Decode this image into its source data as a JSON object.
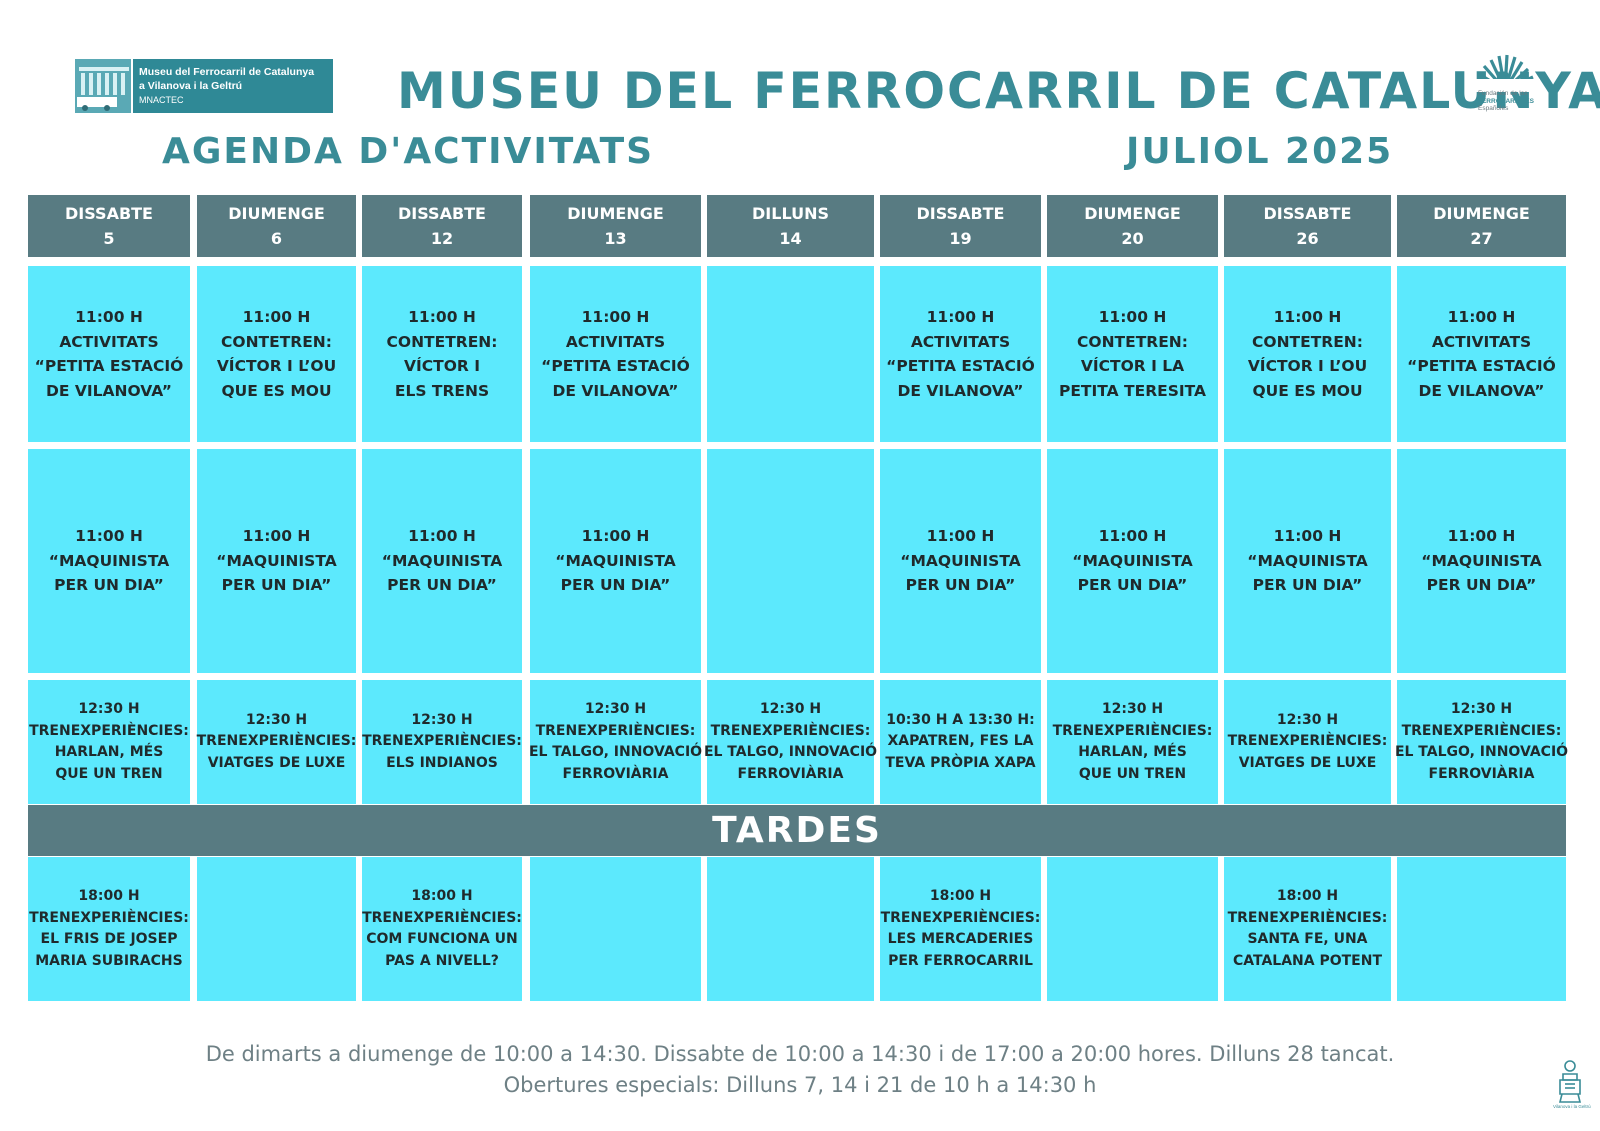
{
  "header": {
    "logo_left": {
      "line1": "Museu del Ferrocarril de Catalunya",
      "line2": "a Vilanova i la Geltrú",
      "line3": "MNACTEC"
    },
    "title": "MUSEU DEL FERROCARRIL DE CATALUNYA",
    "subtitle_left": "AGENDA D'ACTIVITATS",
    "subtitle_right": "JULIOL 2025",
    "logo_right": {
      "line1": "Fundación de los",
      "line2": "FERROCARRILES",
      "line3": "Españoles"
    }
  },
  "days": [
    {
      "weekday": "DISSABTE",
      "date": "5"
    },
    {
      "weekday": "DIUMENGE",
      "date": "6"
    },
    {
      "weekday": "DISSABTE",
      "date": "12"
    },
    {
      "weekday": "DIUMENGE",
      "date": "13"
    },
    {
      "weekday": "DILLUNS",
      "date": "14"
    },
    {
      "weekday": "DISSABTE",
      "date": "19"
    },
    {
      "weekday": "DIUMENGE",
      "date": "20"
    },
    {
      "weekday": "DISSABTE",
      "date": "26"
    },
    {
      "weekday": "DIUMENGE",
      "date": "27"
    }
  ],
  "rows": [
    {
      "id": "morning-1",
      "cells": [
        [
          "11:00 H",
          "ACTIVITATS",
          "“PETITA ESTACIÓ",
          "DE VILANOVA”"
        ],
        [
          "11:00 H",
          "CONTETREN:",
          "VÍCTOR I L’OU",
          "QUE ES MOU"
        ],
        [
          "11:00 H",
          "CONTETREN:",
          "VÍCTOR I",
          "ELS TRENS"
        ],
        [
          "11:00 H",
          "ACTIVITATS",
          "“PETITA ESTACIÓ",
          "DE VILANOVA”"
        ],
        [],
        [
          "11:00 H",
          "ACTIVITATS",
          "“PETITA ESTACIÓ",
          "DE VILANOVA”"
        ],
        [
          "11:00 H",
          "CONTETREN:",
          "VÍCTOR I LA",
          "PETITA TERESITA"
        ],
        [
          "11:00 H",
          "CONTETREN:",
          "VÍCTOR I L’OU",
          "QUE ES MOU"
        ],
        [
          "11:00 H",
          "ACTIVITATS",
          "“PETITA ESTACIÓ",
          "DE VILANOVA”"
        ]
      ]
    },
    {
      "id": "morning-2",
      "cells": [
        [
          "11:00 H",
          "“MAQUINISTA",
          "PER UN DIA”"
        ],
        [
          "11:00 H",
          "“MAQUINISTA",
          "PER UN DIA”"
        ],
        [
          "11:00 H",
          "“MAQUINISTA",
          "PER UN DIA”"
        ],
        [
          "11:00 H",
          "“MAQUINISTA",
          "PER UN DIA”"
        ],
        [],
        [
          "11:00 H",
          "“MAQUINISTA",
          "PER UN DIA”"
        ],
        [
          "11:00 H",
          "“MAQUINISTA",
          "PER UN DIA”"
        ],
        [
          "11:00 H",
          "“MAQUINISTA",
          "PER UN DIA”"
        ],
        [
          "11:00 H",
          "“MAQUINISTA",
          "PER UN DIA”"
        ]
      ]
    },
    {
      "id": "midday",
      "cells": [
        [
          "12:30 H",
          "TRENEXPERIÈNCIES:",
          "HARLAN, MÉS",
          "QUE UN TREN"
        ],
        [
          "12:30 H",
          "TRENEXPERIÈNCIES:",
          "VIATGES DE LUXE"
        ],
        [
          "12:30 H",
          "TRENEXPERIÈNCIES:",
          "ELS INDIANOS"
        ],
        [
          "12:30 H",
          "TRENEXPERIÈNCIES:",
          "EL TALGO, INNOVACIÓ",
          "FERROVIÀRIA"
        ],
        [
          "12:30 H",
          "TRENEXPERIÈNCIES:",
          "EL TALGO, INNOVACIÓ",
          "FERROVIÀRIA"
        ],
        [
          "10:30 H A 13:30 H:",
          "XAPATREN, FES LA",
          "TEVA PRÒPIA XAPA"
        ],
        [
          "12:30 H",
          "TRENEXPERIÈNCIES:",
          "HARLAN, MÉS",
          "QUE UN TREN"
        ],
        [
          "12:30 H",
          "TRENEXPERIÈNCIES:",
          "VIATGES DE LUXE"
        ],
        [
          "12:30 H",
          "TRENEXPERIÈNCIES:",
          "EL TALGO, INNOVACIÓ",
          "FERROVIÀRIA"
        ]
      ]
    },
    {
      "id": "afternoon",
      "cells": [
        [
          "18:00 H",
          "TRENEXPERIÈNCIES:",
          "EL FRIS DE JOSEP",
          "MARIA SUBIRACHS"
        ],
        [],
        [
          "18:00 H",
          "TRENEXPERIÈNCIES:",
          "COM FUNCIONA UN",
          "PAS A NIVELL?"
        ],
        [],
        [],
        [
          "18:00 H",
          "TRENEXPERIÈNCIES:",
          "LES MERCADERIES",
          "PER FERROCARRIL"
        ],
        [],
        [
          "18:00 H",
          "TRENEXPERIÈNCIES:",
          "SANTA FE, UNA",
          "CATALANA POTENT"
        ],
        []
      ]
    }
  ],
  "tardes_label": "TARDES",
  "footer": {
    "line1": "De dimarts a diumenge de 10:00 a 14:30. Dissabte de 10:00 a 14:30 i de 17:00 a 20:00 hores. Dilluns 28 tancat.",
    "line2": "Obertures especials: Dilluns 7, 14 i 21 de 10 h a 14:30 h"
  },
  "logo_bottom_right": "Vilanova i la Geltrú",
  "colors": {
    "accent": "#3a8c97",
    "header_bg": "#587b82",
    "cell_bg": "#5ce9fd",
    "footer_text": "#6e8085"
  }
}
